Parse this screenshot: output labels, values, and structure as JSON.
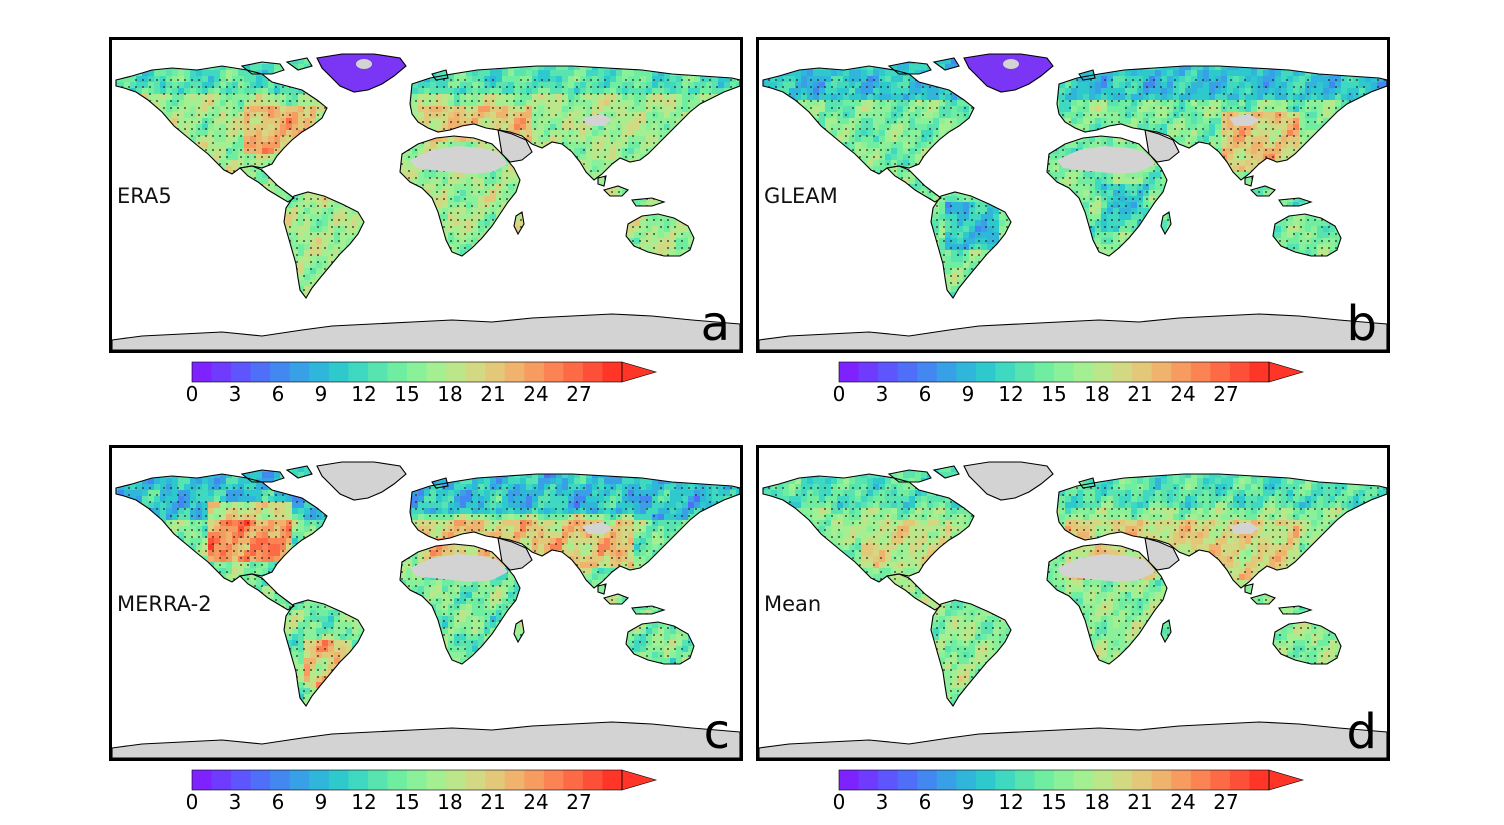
{
  "panels": [
    {
      "id": "a",
      "dataset": "ERA5",
      "letter": "a",
      "bias": "era5"
    },
    {
      "id": "b",
      "dataset": "GLEAM",
      "letter": "b",
      "bias": "gleam"
    },
    {
      "id": "c",
      "dataset": "MERRA-2",
      "letter": "c",
      "bias": "merra"
    },
    {
      "id": "d",
      "dataset": "Mean",
      "letter": "d",
      "bias": "mean"
    }
  ],
  "colorbar": {
    "ticks": [
      "0",
      "3",
      "6",
      "9",
      "12",
      "15",
      "18",
      "21",
      "24",
      "27"
    ],
    "min": 0,
    "max": 30,
    "extend": "max",
    "colors": [
      "#7e22ff",
      "#6e3bff",
      "#5e55ff",
      "#4f6ff8",
      "#4388f0",
      "#38a0e6",
      "#2fb6da",
      "#2ec9cd",
      "#3fd8c0",
      "#57e4b0",
      "#6fedA0",
      "#8af09a",
      "#a4ef92",
      "#bce68a",
      "#d2d982",
      "#e3c87a",
      "#efb36e",
      "#f79c61",
      "#fb8354",
      "#fd6a46",
      "#fe5038",
      "#ff3527"
    ]
  },
  "land_color": "#d3d3d3",
  "ocean_color": "#ffffff"
}
